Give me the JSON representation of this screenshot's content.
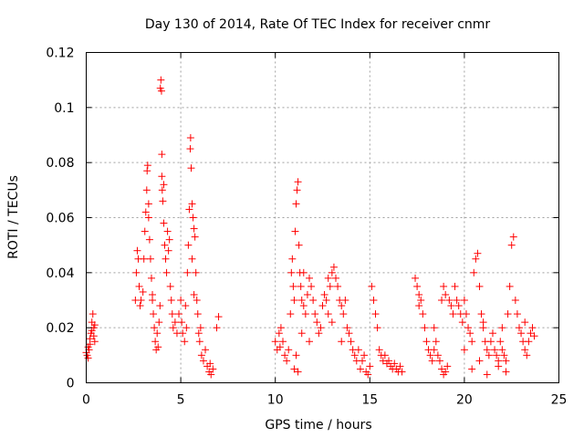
{
  "chart_data": {
    "type": "scatter",
    "title": "Day 130 of 2014, Rate Of TEC Index for receiver cnmr",
    "xlabel": "GPS time / hours",
    "ylabel": "ROTI / TECUs",
    "xlim": [
      0,
      25
    ],
    "ylim": [
      0,
      0.12
    ],
    "xticks": [
      0,
      5,
      10,
      15,
      20,
      25
    ],
    "xtick_labels": [
      "0",
      "5",
      "10",
      "15",
      "20",
      "25"
    ],
    "yticks": [
      0,
      0.02,
      0.04,
      0.06,
      0.08,
      0.1,
      0.12
    ],
    "ytick_labels": [
      "0",
      "0.02",
      "0.04",
      "0.06",
      "0.08",
      "0.1",
      "0.12"
    ],
    "grid": true,
    "marker": "+",
    "colors": {
      "series": "#ff0000",
      "grid": "#a0a0a0",
      "axes": "#000000"
    },
    "series": [
      {
        "name": "cnmr",
        "points": [
          [
            0.0,
            0.011
          ],
          [
            0.05,
            0.01
          ],
          [
            0.1,
            0.013
          ],
          [
            0.15,
            0.012
          ],
          [
            0.2,
            0.016
          ],
          [
            0.25,
            0.018
          ],
          [
            0.3,
            0.022
          ],
          [
            0.35,
            0.025
          ],
          [
            0.4,
            0.02
          ],
          [
            0.45,
            0.015
          ],
          [
            0.1,
            0.009
          ],
          [
            0.2,
            0.014
          ],
          [
            0.3,
            0.019
          ],
          [
            0.4,
            0.017
          ],
          [
            0.45,
            0.021
          ],
          [
            2.6,
            0.03
          ],
          [
            2.65,
            0.04
          ],
          [
            2.7,
            0.048
          ],
          [
            2.75,
            0.045
          ],
          [
            2.8,
            0.035
          ],
          [
            2.85,
            0.028
          ],
          [
            2.9,
            0.03
          ],
          [
            3.0,
            0.033
          ],
          [
            3.05,
            0.045
          ],
          [
            3.1,
            0.055
          ],
          [
            3.15,
            0.062
          ],
          [
            3.2,
            0.07
          ],
          [
            3.22,
            0.077
          ],
          [
            3.25,
            0.079
          ],
          [
            3.3,
            0.06
          ],
          [
            3.35,
            0.052
          ],
          [
            3.4,
            0.045
          ],
          [
            3.45,
            0.038
          ],
          [
            3.5,
            0.03
          ],
          [
            3.55,
            0.025
          ],
          [
            3.6,
            0.02
          ],
          [
            3.65,
            0.015
          ],
          [
            3.7,
            0.012
          ],
          [
            3.75,
            0.018
          ],
          [
            3.8,
            0.013
          ],
          [
            3.85,
            0.022
          ],
          [
            3.9,
            0.028
          ],
          [
            3.92,
            0.107
          ],
          [
            3.95,
            0.11
          ],
          [
            3.98,
            0.106
          ],
          [
            4.0,
            0.075
          ],
          [
            4.02,
            0.07
          ],
          [
            4.05,
            0.066
          ],
          [
            4.1,
            0.058
          ],
          [
            4.15,
            0.05
          ],
          [
            4.2,
            0.045
          ],
          [
            4.25,
            0.04
          ],
          [
            4.3,
            0.055
          ],
          [
            4.35,
            0.048
          ],
          [
            4.4,
            0.052
          ],
          [
            4.45,
            0.035
          ],
          [
            4.5,
            0.03
          ],
          [
            4.55,
            0.025
          ],
          [
            4.6,
            0.02
          ],
          [
            4.7,
            0.022
          ],
          [
            4.8,
            0.018
          ],
          [
            4.9,
            0.025
          ],
          [
            4.0,
            0.083
          ],
          [
            4.1,
            0.072
          ],
          [
            3.3,
            0.065
          ],
          [
            3.5,
            0.032
          ],
          [
            5.0,
            0.03
          ],
          [
            5.05,
            0.022
          ],
          [
            5.1,
            0.018
          ],
          [
            5.2,
            0.015
          ],
          [
            5.3,
            0.02
          ],
          [
            5.35,
            0.04
          ],
          [
            5.4,
            0.05
          ],
          [
            5.45,
            0.063
          ],
          [
            5.5,
            0.085
          ],
          [
            5.52,
            0.089
          ],
          [
            5.55,
            0.078
          ],
          [
            5.6,
            0.065
          ],
          [
            5.65,
            0.06
          ],
          [
            5.7,
            0.056
          ],
          [
            5.75,
            0.053
          ],
          [
            5.8,
            0.04
          ],
          [
            5.85,
            0.03
          ],
          [
            5.9,
            0.025
          ],
          [
            5.95,
            0.018
          ],
          [
            6.0,
            0.015
          ],
          [
            6.1,
            0.01
          ],
          [
            6.2,
            0.008
          ],
          [
            6.3,
            0.012
          ],
          [
            6.4,
            0.006
          ],
          [
            6.5,
            0.004
          ],
          [
            6.55,
            0.007
          ],
          [
            6.6,
            0.003
          ],
          [
            6.7,
            0.005
          ],
          [
            6.9,
            0.02
          ],
          [
            7.0,
            0.024
          ],
          [
            5.25,
            0.028
          ],
          [
            5.6,
            0.045
          ],
          [
            5.7,
            0.032
          ],
          [
            6.05,
            0.02
          ],
          [
            10.0,
            0.015
          ],
          [
            10.1,
            0.012
          ],
          [
            10.2,
            0.018
          ],
          [
            10.25,
            0.013
          ],
          [
            10.3,
            0.02
          ],
          [
            10.4,
            0.015
          ],
          [
            10.5,
            0.01
          ],
          [
            10.6,
            0.008
          ],
          [
            10.7,
            0.012
          ],
          [
            10.8,
            0.025
          ],
          [
            10.85,
            0.04
          ],
          [
            10.9,
            0.045
          ],
          [
            10.95,
            0.035
          ],
          [
            11.0,
            0.03
          ],
          [
            11.05,
            0.055
          ],
          [
            11.1,
            0.065
          ],
          [
            11.15,
            0.07
          ],
          [
            11.2,
            0.073
          ],
          [
            11.25,
            0.05
          ],
          [
            11.3,
            0.04
          ],
          [
            11.35,
            0.035
          ],
          [
            11.4,
            0.03
          ],
          [
            11.5,
            0.028
          ],
          [
            11.6,
            0.025
          ],
          [
            11.7,
            0.032
          ],
          [
            11.8,
            0.038
          ],
          [
            11.9,
            0.035
          ],
          [
            12.0,
            0.03
          ],
          [
            12.1,
            0.025
          ],
          [
            12.2,
            0.022
          ],
          [
            12.3,
            0.018
          ],
          [
            12.4,
            0.02
          ],
          [
            11.0,
            0.005
          ],
          [
            11.1,
            0.01
          ],
          [
            11.2,
            0.004
          ],
          [
            11.4,
            0.018
          ],
          [
            11.5,
            0.04
          ],
          [
            11.8,
            0.015
          ],
          [
            12.5,
            0.028
          ],
          [
            12.6,
            0.032
          ],
          [
            12.7,
            0.03
          ],
          [
            12.8,
            0.025
          ],
          [
            12.9,
            0.035
          ],
          [
            13.0,
            0.04
          ],
          [
            13.1,
            0.042
          ],
          [
            13.2,
            0.038
          ],
          [
            13.3,
            0.035
          ],
          [
            13.4,
            0.03
          ],
          [
            13.5,
            0.028
          ],
          [
            13.6,
            0.025
          ],
          [
            13.7,
            0.03
          ],
          [
            13.8,
            0.02
          ],
          [
            13.9,
            0.018
          ],
          [
            14.0,
            0.015
          ],
          [
            14.1,
            0.012
          ],
          [
            14.2,
            0.01
          ],
          [
            14.3,
            0.008
          ],
          [
            14.4,
            0.012
          ],
          [
            14.5,
            0.005
          ],
          [
            14.6,
            0.008
          ],
          [
            14.7,
            0.01
          ],
          [
            14.8,
            0.004
          ],
          [
            14.9,
            0.003
          ],
          [
            15.0,
            0.006
          ],
          [
            15.1,
            0.035
          ],
          [
            15.2,
            0.03
          ],
          [
            15.3,
            0.025
          ],
          [
            15.4,
            0.02
          ],
          [
            13.0,
            0.022
          ],
          [
            13.5,
            0.015
          ],
          [
            12.8,
            0.038
          ],
          [
            15.5,
            0.012
          ],
          [
            15.6,
            0.01
          ],
          [
            15.7,
            0.008
          ],
          [
            15.8,
            0.01
          ],
          [
            15.9,
            0.007
          ],
          [
            16.0,
            0.008
          ],
          [
            16.1,
            0.006
          ],
          [
            16.2,
            0.005
          ],
          [
            16.3,
            0.007
          ],
          [
            16.4,
            0.005
          ],
          [
            16.5,
            0.004
          ],
          [
            16.6,
            0.006
          ],
          [
            16.7,
            0.004
          ],
          [
            17.4,
            0.038
          ],
          [
            17.5,
            0.035
          ],
          [
            17.6,
            0.032
          ],
          [
            17.7,
            0.03
          ],
          [
            17.8,
            0.025
          ],
          [
            17.9,
            0.02
          ],
          [
            18.0,
            0.015
          ],
          [
            18.1,
            0.012
          ],
          [
            18.2,
            0.01
          ],
          [
            18.3,
            0.008
          ],
          [
            18.4,
            0.012
          ],
          [
            18.5,
            0.015
          ],
          [
            18.6,
            0.01
          ],
          [
            18.7,
            0.008
          ],
          [
            18.8,
            0.005
          ],
          [
            18.9,
            0.003
          ],
          [
            19.0,
            0.004
          ],
          [
            19.1,
            0.006
          ],
          [
            18.8,
            0.03
          ],
          [
            18.9,
            0.035
          ],
          [
            19.0,
            0.032
          ],
          [
            19.2,
            0.03
          ],
          [
            19.3,
            0.028
          ],
          [
            19.4,
            0.025
          ],
          [
            19.5,
            0.035
          ],
          [
            19.6,
            0.03
          ],
          [
            19.7,
            0.028
          ],
          [
            19.8,
            0.025
          ],
          [
            19.9,
            0.022
          ],
          [
            17.6,
            0.028
          ],
          [
            18.4,
            0.02
          ],
          [
            20.0,
            0.03
          ],
          [
            20.1,
            0.025
          ],
          [
            20.2,
            0.02
          ],
          [
            20.3,
            0.018
          ],
          [
            20.4,
            0.015
          ],
          [
            20.5,
            0.04
          ],
          [
            20.6,
            0.045
          ],
          [
            20.7,
            0.047
          ],
          [
            20.8,
            0.035
          ],
          [
            20.9,
            0.025
          ],
          [
            21.0,
            0.02
          ],
          [
            21.1,
            0.015
          ],
          [
            21.2,
            0.012
          ],
          [
            21.3,
            0.01
          ],
          [
            21.4,
            0.015
          ],
          [
            21.5,
            0.018
          ],
          [
            21.6,
            0.012
          ],
          [
            21.7,
            0.01
          ],
          [
            21.8,
            0.008
          ],
          [
            21.9,
            0.015
          ],
          [
            22.0,
            0.012
          ],
          [
            22.1,
            0.01
          ],
          [
            22.2,
            0.008
          ],
          [
            22.3,
            0.025
          ],
          [
            22.4,
            0.035
          ],
          [
            22.5,
            0.05
          ],
          [
            22.6,
            0.053
          ],
          [
            22.7,
            0.03
          ],
          [
            22.8,
            0.025
          ],
          [
            22.9,
            0.02
          ],
          [
            23.0,
            0.018
          ],
          [
            23.1,
            0.015
          ],
          [
            23.2,
            0.012
          ],
          [
            23.3,
            0.01
          ],
          [
            23.4,
            0.015
          ],
          [
            23.5,
            0.018
          ],
          [
            23.6,
            0.02
          ],
          [
            23.7,
            0.017
          ],
          [
            20.4,
            0.005
          ],
          [
            20.8,
            0.008
          ],
          [
            21.2,
            0.003
          ],
          [
            21.8,
            0.006
          ],
          [
            22.2,
            0.004
          ],
          [
            20.0,
            0.012
          ],
          [
            21.0,
            0.022
          ],
          [
            22.0,
            0.02
          ],
          [
            23.2,
            0.022
          ]
        ]
      }
    ]
  }
}
